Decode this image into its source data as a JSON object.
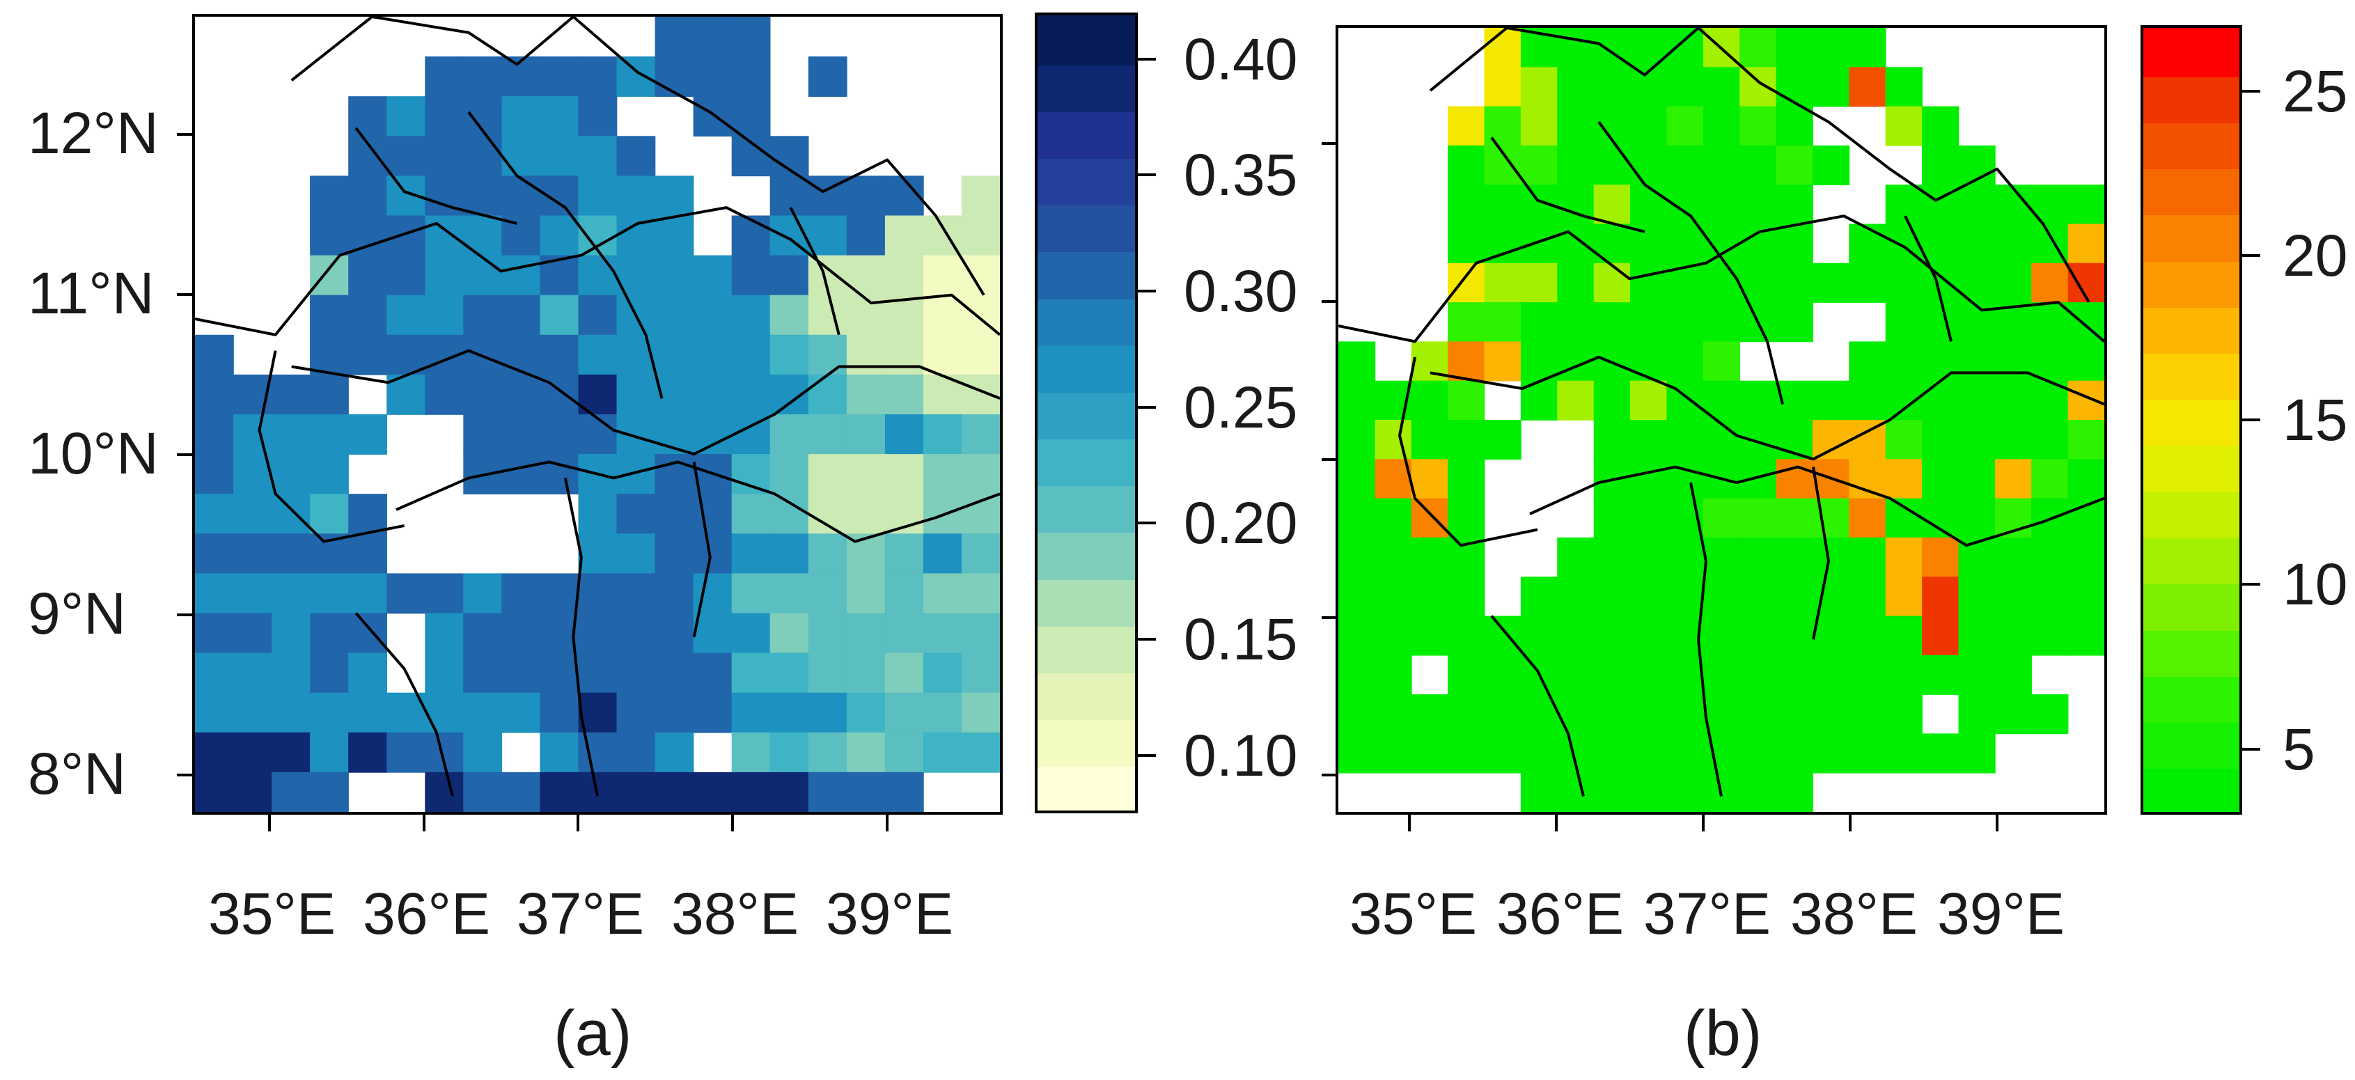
{
  "panel_a": {
    "caption": "(a)",
    "lat_labels": [
      "12°N",
      "11°N",
      "10°N",
      "9°N",
      "8°N"
    ],
    "lon_labels": [
      "35°E",
      "36°E",
      "37°E",
      "38°E",
      "39°E"
    ],
    "colorbar_labels": [
      "0.40",
      "0.35",
      "0.30",
      "0.25",
      "0.20",
      "0.15",
      "0.10"
    ],
    "colorbar_range": [
      0.075,
      0.42
    ],
    "palette": [
      "#ffffd9",
      "#f3fac2",
      "#e4f4b8",
      "#cbeab4",
      "#aadfb6",
      "#7fcdbb",
      "#5bbec0",
      "#3fb4c4",
      "#2da0c3",
      "#1d91c0",
      "#1f7fb8",
      "#2165ab",
      "#23509f",
      "#23419a",
      "#1f3291",
      "#0f2872",
      "#081d58"
    ]
  },
  "panel_b": {
    "caption": "(b)",
    "lon_labels": [
      "35°E",
      "36°E",
      "37°E",
      "38°E",
      "39°E"
    ],
    "colorbar_labels": [
      "25",
      "20",
      "15",
      "10",
      "5"
    ],
    "colorbar_range": [
      3,
      27
    ],
    "palette": [
      "#00ee00",
      "#14f000",
      "#2df200",
      "#55f200",
      "#7cf000",
      "#a3f000",
      "#c4f000",
      "#e0ef00",
      "#f5e800",
      "#fcd000",
      "#fcb500",
      "#fb9a00",
      "#f98200",
      "#f66900",
      "#f35000",
      "#f03600",
      "#ff0000"
    ]
  },
  "chart_data": [
    {
      "type": "heatmap",
      "title": "",
      "caption": "(a)",
      "x_ticks": [
        "35°E",
        "36°E",
        "37°E",
        "38°E",
        "39°E"
      ],
      "y_ticks": [
        "12°N",
        "11°N",
        "10°N",
        "9°N",
        "8°N"
      ],
      "xlim": [
        34.5,
        39.75
      ],
      "ylim": [
        7.75,
        12.75
      ],
      "colorbar_ticks": [
        0.1,
        0.15,
        0.2,
        0.25,
        0.3,
        0.35,
        0.4
      ],
      "colorbar_range": [
        0.075,
        0.42
      ],
      "cell_deg": 0.25,
      "grid_origin": {
        "lon": 34.5,
        "lat": 12.75
      },
      "rows": [
        "..........,,777.........",
        "......777776777.7.......",
        "....7677667,,77........",
        "....77776667,,77.......8",
        "...7767777666,,7777.2227",
        "...7776676566,7667222334",
        "...3776667666677222111223",
        "...77667757666632221111223",
        "7..7777777666665422111124",
        "7777,6777786666653322223233",
        "76666,,777766664446543332.3",
        "7666,,,777667754222333322.",
        "66657,,,,,677744222333326.",
        "77777,,,,,667766434643345",
        "66666776777776444343344",
        "77677.677777766344444334",
        "66676,67777777554435433",
        "66666666678777666544355",
        "88868776.6776,45434555",
        "8877..8778888888777",
        "..........66666..",
        "...........8766....",
        "............8777....",
        "...............",
        "...............7777",
        "..............."
      ]
    },
    {
      "type": "heatmap",
      "title": "",
      "caption": "(b)",
      "x_ticks": [
        "35°E",
        "36°E",
        "37°E",
        "38°E",
        "39°E"
      ],
      "y_ticks": [],
      "xlim": [
        34.5,
        39.75
      ],
      "ylim": [
        7.75,
        12.75
      ],
      "colorbar_ticks": [
        5,
        10,
        15,
        20,
        25
      ],
      "colorbar_range": [
        3,
        27
      ],
      "cell_deg": 0.25,
      "grid_origin": {
        "lon": 34.5,
        "lat": 12.75
      },
      "rows": [
        "....57777768777.........",
        "....5677777677D7........",
        "...5867778787,,67.......",
        "...78877777787,,77......",
        "...7777677777,,7777777..",
        "...7777777777,777777A777",
        "...5667677777777777CE777",
        "...8877777777,,77777777G8",
        "7.6CA777778,,,777777765",
        "7778,767677777777777A67",
        "76777,,777777AA8777787877",
        "7CA7,,,77777CCAA77A8766777",
        "77C7,,,7778888C7778777777",
        "7777,,777777777AC77778",
        "7777.7777777777AE7777",
        "7777777777777777E7777",
        "77.7777777777777777",
        "7777777777777777,777",
        "777777777777777777",
        ".....77777777",
        "......7777777",
        "......777777",
        "........7777",
        "........7777",
        "..........777",
        ".........."
      ]
    }
  ]
}
